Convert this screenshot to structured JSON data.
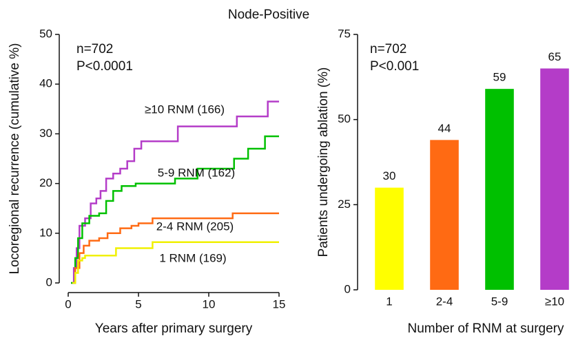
{
  "title": "Node-Positive",
  "chart_data": [
    {
      "type": "line",
      "step": true,
      "xlabel": "Years after primary surgery",
      "ylabel": "Locoregional recurrence (cumulative %)",
      "annotations": [
        "n=702",
        "P<0.0001"
      ],
      "xlim": [
        0,
        15
      ],
      "xticks": [
        0,
        5,
        10,
        15
      ],
      "ylim": [
        0,
        50
      ],
      "yticks": [
        0,
        10,
        20,
        30,
        40,
        50
      ],
      "series": [
        {
          "name": "≥10 RNM (166)",
          "color": "#b43cc8",
          "x": [
            0.2,
            0.4,
            0.6,
            0.8,
            1.2,
            1.6,
            2,
            2.3,
            2.7,
            3.2,
            3.7,
            4.2,
            4.7,
            5.2,
            7.8,
            12,
            14.2,
            15
          ],
          "values": [
            0,
            3,
            7,
            11.5,
            13,
            16,
            17,
            18.5,
            21,
            22,
            23,
            24.5,
            27,
            28.5,
            31.5,
            33.5,
            36.5,
            36.5
          ]
        },
        {
          "name": "5-9 RNM (162)",
          "color": "#00c000",
          "x": [
            0.2,
            0.5,
            0.7,
            1,
            1.5,
            2.2,
            2.7,
            3.2,
            3.8,
            4.8,
            7.6,
            9.2,
            11.8,
            12.8,
            14,
            15
          ],
          "values": [
            0,
            5,
            9,
            12,
            13.5,
            14,
            16.5,
            18.5,
            19.5,
            20,
            21,
            23,
            25,
            27,
            29.5,
            29.5
          ]
        },
        {
          "name": "2-4 RNM (205)",
          "color": "#ff6a13",
          "x": [
            0.3,
            0.5,
            0.8,
            1.1,
            1.5,
            2.2,
            2.8,
            3.7,
            4.5,
            5,
            6,
            11.7,
            15
          ],
          "values": [
            0,
            3,
            6,
            7.5,
            8.5,
            9,
            10,
            11,
            11.5,
            12,
            13,
            14,
            14
          ]
        },
        {
          "name": "1 RNM (169)",
          "color": "#f0f000",
          "x": [
            0.3,
            0.5,
            0.7,
            1,
            1.2,
            3.4,
            6,
            15
          ],
          "values": [
            0,
            2,
            4.5,
            5,
            5.5,
            7,
            8.2,
            8.2
          ]
        }
      ]
    },
    {
      "type": "bar",
      "xlabel": "Number of RNM at surgery",
      "ylabel": "Patients undergoing ablation (%)",
      "annotations": [
        "n=702",
        "P<0.001"
      ],
      "categories": [
        "1",
        "2-4",
        "5-9",
        "≥10"
      ],
      "values": [
        30,
        44,
        59,
        65
      ],
      "colors": [
        "#ffff00",
        "#ff6a13",
        "#00c000",
        "#b43cc8"
      ],
      "ylim": [
        0,
        75
      ],
      "yticks": [
        0,
        25,
        50,
        75
      ]
    }
  ]
}
